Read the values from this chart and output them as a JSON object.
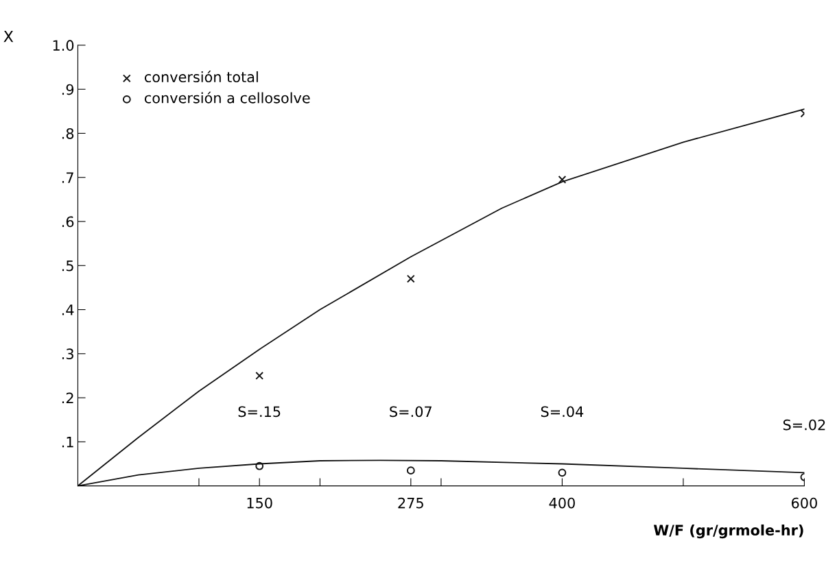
{
  "chart_data": {
    "type": "scatter",
    "xlabel": "W/F (gr/grmole-hr)",
    "ylabel": "X",
    "xlim": [
      0,
      600
    ],
    "ylim": [
      0,
      1.0
    ],
    "xticks": [
      {
        "value": 100,
        "label": null
      },
      150,
      {
        "value": 200,
        "label": null
      },
      275,
      {
        "value": 300,
        "label": null
      },
      400,
      {
        "value": 500,
        "label": null
      },
      600
    ],
    "yticks": [
      {
        "value": 0.1,
        "label": ".1"
      },
      {
        "value": 0.2,
        "label": ".2"
      },
      {
        "value": 0.3,
        "label": ".3"
      },
      {
        "value": 0.4,
        "label": ".4"
      },
      {
        "value": 0.5,
        "label": ".5"
      },
      {
        "value": 0.6,
        "label": ".6"
      },
      {
        "value": 0.7,
        "label": ".7"
      },
      {
        "value": 0.8,
        "label": ".8"
      },
      {
        "value": 0.9,
        "label": ".9"
      },
      {
        "value": 1.0,
        "label": "1.0"
      }
    ],
    "grid": false,
    "legend": "top left",
    "series": [
      {
        "name": "conversión total",
        "color": "#111111",
        "marker": "cross",
        "x": [
          150,
          275,
          400,
          600
        ],
        "values": [
          0.25,
          0.47,
          0.695,
          0.845
        ]
      },
      {
        "name": "conversión a cellosolve",
        "color": "#111111",
        "marker": "circle",
        "x": [
          150,
          275,
          400,
          600
        ],
        "values": [
          0.045,
          0.035,
          0.03,
          0.02
        ]
      },
      {
        "type": "line",
        "color": "#111111",
        "marker": "none",
        "x": [
          0,
          50,
          100,
          150,
          200,
          275,
          350,
          400,
          500,
          600
        ],
        "values": [
          0,
          0.11,
          0.215,
          0.31,
          0.4,
          0.52,
          0.63,
          0.69,
          0.78,
          0.855
        ]
      },
      {
        "type": "line",
        "color": "#111111",
        "marker": "none",
        "x": [
          0,
          50,
          100,
          150,
          200,
          250,
          300,
          400,
          500,
          600
        ],
        "values": [
          0,
          0.025,
          0.04,
          0.05,
          0.057,
          0.058,
          0.057,
          0.05,
          0.04,
          0.03
        ]
      }
    ],
    "annotations": [
      "S=.15",
      "S=.07",
      "S=.04",
      "S=.02"
    ]
  }
}
